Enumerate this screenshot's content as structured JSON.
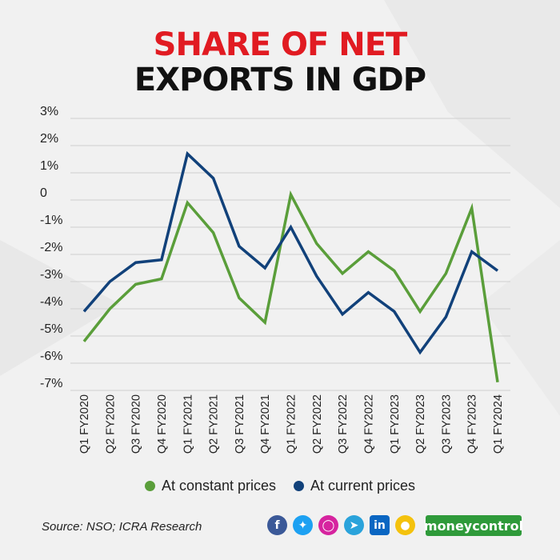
{
  "title": {
    "line1": "SHARE OF NET",
    "line2": "EXPORTS IN GDP",
    "line1_color": "#e11b22",
    "line2_color": "#111111"
  },
  "chart_data": {
    "type": "line",
    "categories": [
      "Q1 FY2020",
      "Q2 FY2020",
      "Q3 FY2020",
      "Q4 FY2020",
      "Q1 FY2021",
      "Q2 FY2021",
      "Q3 FY2021",
      "Q4 FY2021",
      "Q1 FY2022",
      "Q2 FY2022",
      "Q3 FY2022",
      "Q4 FY2022",
      "Q1 FY2023",
      "Q2 FY2023",
      "Q3 FY2023",
      "Q4 FY2023",
      "Q1 FY2024"
    ],
    "y_tick_labels": [
      "3%",
      "2%",
      "1%",
      "0",
      "-1%",
      "-2%",
      "-3%",
      "-4%",
      "-5%",
      "-6%",
      "-7%"
    ],
    "ylim": [
      -7,
      3
    ],
    "grid": true,
    "legend_position": "bottom",
    "series": [
      {
        "name": "At constant prices",
        "color": "#5a9e3a",
        "values": [
          -5.2,
          -4.0,
          -3.1,
          -2.9,
          -0.1,
          -1.2,
          -3.6,
          -4.5,
          0.2,
          -1.6,
          -2.7,
          -1.9,
          -2.6,
          -4.1,
          -2.7,
          -0.3,
          -6.7
        ]
      },
      {
        "name": "At current prices",
        "color": "#11417a",
        "values": [
          -4.1,
          -3.0,
          -2.3,
          -2.2,
          1.7,
          0.8,
          -1.7,
          -2.5,
          -1.0,
          -2.8,
          -4.2,
          -3.4,
          -4.1,
          -5.6,
          -4.3,
          -1.9,
          -2.6
        ]
      }
    ]
  },
  "legend": {
    "constant_label": "At constant prices",
    "current_label": "At current prices"
  },
  "source": "Source: NSO; ICRA Research",
  "social_icons": [
    "facebook-icon",
    "twitter-icon",
    "instagram-icon",
    "telegram-icon",
    "linkedin-icon",
    "koo-icon"
  ],
  "brand": "moneycontrol",
  "colors": {
    "facebook": "#3b5998",
    "twitter": "#1da1f2",
    "instagram": "#d6249f",
    "telegram": "#2aa3db",
    "linkedin": "#0a66c2",
    "koo": "#f4c20d",
    "brand": "#2f9a3a"
  }
}
